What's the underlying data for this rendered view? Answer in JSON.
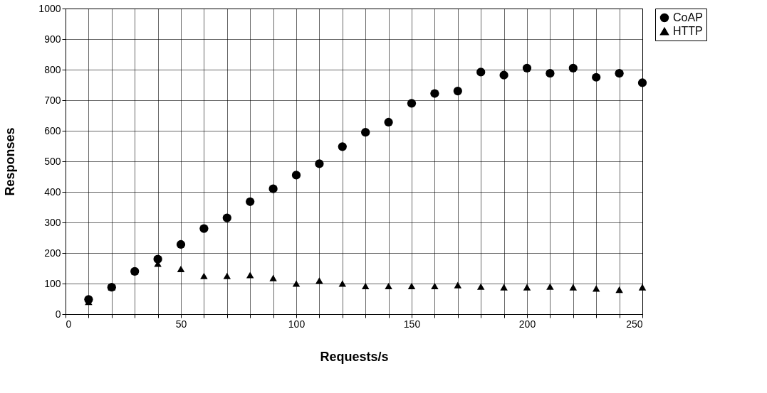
{
  "chart_data": {
    "type": "scatter",
    "xlabel": "Requests/s",
    "ylabel": "Responses",
    "x": [
      10,
      20,
      30,
      40,
      50,
      60,
      70,
      80,
      90,
      100,
      110,
      120,
      130,
      140,
      150,
      160,
      170,
      180,
      190,
      200,
      210,
      220,
      230,
      240,
      250
    ],
    "series": [
      {
        "name": "CoAP",
        "color": "#000000",
        "marker": "circle",
        "values": [
          48,
          88,
          140,
          180,
          228,
          280,
          315,
          368,
          410,
          455,
          492,
          548,
          595,
          628,
          690,
          722,
          730,
          792,
          782,
          805,
          788,
          805,
          775,
          788,
          757
        ]
      },
      {
        "name": "HTTP",
        "color": "#000000",
        "marker": "triangle",
        "values": [
          40,
          88,
          140,
          165,
          148,
          125,
          125,
          128,
          118,
          100,
          110,
          100,
          92,
          92,
          92,
          92,
          95,
          90,
          88,
          88,
          90,
          88,
          84,
          80,
          88
        ]
      }
    ],
    "xlim": [
      0,
      250
    ],
    "xticks": [
      0,
      {
        "value": 10,
        "label": null
      },
      {
        "value": 20,
        "label": null
      },
      {
        "value": 30,
        "label": null
      },
      {
        "value": 40,
        "label": null
      },
      50,
      {
        "value": 60,
        "label": null
      },
      {
        "value": 70,
        "label": null
      },
      {
        "value": 80,
        "label": null
      },
      {
        "value": 90,
        "label": null
      },
      100,
      {
        "value": 110,
        "label": null
      },
      {
        "value": 120,
        "label": null
      },
      {
        "value": 130,
        "label": null
      },
      {
        "value": 140,
        "label": null
      },
      150,
      {
        "value": 160,
        "label": null
      },
      {
        "value": 170,
        "label": null
      },
      {
        "value": 180,
        "label": null
      },
      {
        "value": 190,
        "label": null
      },
      200,
      {
        "value": 210,
        "label": null
      },
      {
        "value": 220,
        "label": null
      },
      {
        "value": 230,
        "label": null
      },
      {
        "value": 240,
        "label": null
      },
      250
    ],
    "ylim": [
      0,
      1000
    ],
    "yticks": [
      0,
      100,
      200,
      300,
      400,
      500,
      600,
      700,
      800,
      900,
      1000
    ],
    "grid": true,
    "legend": "right"
  }
}
